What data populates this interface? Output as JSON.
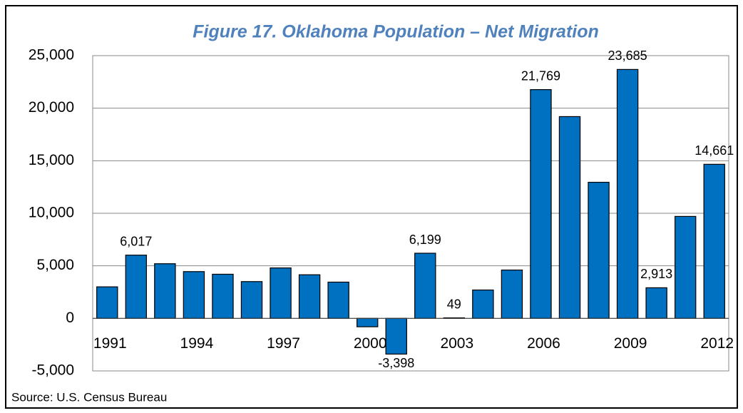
{
  "chart_data": {
    "type": "bar",
    "title": "Figure 17. Oklahoma Population – Net Migration",
    "source": "Source: U.S. Census Bureau",
    "categories": [
      "1991",
      null,
      null,
      "1994",
      null,
      null,
      "1997",
      null,
      null,
      "2000",
      null,
      null,
      "2003",
      null,
      null,
      "2006",
      null,
      null,
      "2009",
      null,
      null,
      "2012"
    ],
    "values": [
      3000,
      6017,
      5200,
      4450,
      4200,
      3500,
      4800,
      4150,
      3450,
      -800,
      -3398,
      6199,
      49,
      2700,
      4600,
      21769,
      19200,
      12950,
      23685,
      2913,
      9700,
      14661
    ],
    "value_labels": [
      null,
      "6,017",
      null,
      null,
      null,
      null,
      null,
      null,
      null,
      null,
      "-3,398",
      "6,199",
      "49",
      null,
      null,
      "21,769",
      null,
      null,
      "23,685",
      "2,913",
      null,
      "14,661"
    ],
    "color": "#0070c0",
    "ylim": [
      -5000,
      25000
    ],
    "yticks": [
      {
        "value": -5000,
        "label": "-5,000"
      },
      0,
      {
        "value": 5000,
        "label": "5,000"
      },
      {
        "value": 10000,
        "label": "10,000"
      },
      {
        "value": 15000,
        "label": "15,000"
      },
      {
        "value": 20000,
        "label": "20,000"
      },
      {
        "value": 25000,
        "label": "25,000"
      }
    ],
    "grid": true
  }
}
